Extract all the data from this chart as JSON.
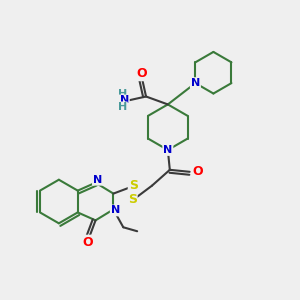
{
  "background_color": "#efefef",
  "atom_colors": {
    "N": "#0000cc",
    "O": "#ff0000",
    "S": "#cccc00",
    "C_bond": "#2d6e2d",
    "NH2_color": "#4a9a9a"
  },
  "bond_lw": 1.5,
  "bond_color": "#3a3a3a",
  "ring_bond_color": "#3a7a3a"
}
